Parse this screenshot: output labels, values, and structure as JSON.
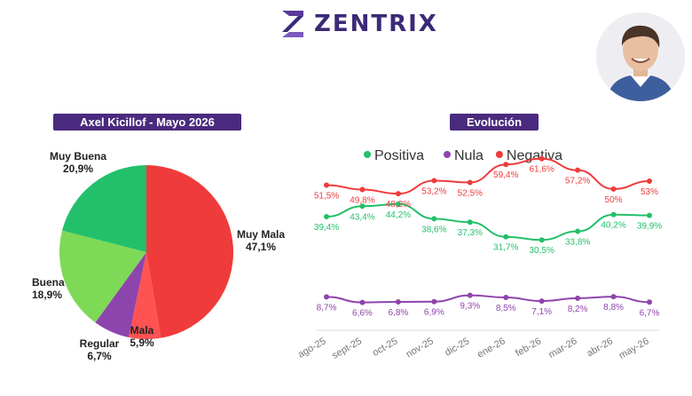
{
  "brand": {
    "name": "ZENTRIX"
  },
  "colors": {
    "header_purple": "#4a2a7e",
    "positiva": "#22c06a",
    "nula": "#8e44ad",
    "negativa": "#ef3b3b"
  },
  "chart_data": [
    {
      "type": "pie",
      "title": "Axel Kicillof - Mayo 2026",
      "slices": [
        {
          "label": "Muy Mala",
          "value": 47.1,
          "display": "47,1%",
          "color": "#ef3b3b"
        },
        {
          "label": "Mala",
          "value": 5.9,
          "display": "5,9%",
          "color": "#ff5252"
        },
        {
          "label": "Regular",
          "value": 6.7,
          "display": "6,7%",
          "color": "#8e44ad"
        },
        {
          "label": "Buena",
          "value": 18.9,
          "display": "18,9%",
          "color": "#7ed957"
        },
        {
          "label": "Muy Buena",
          "value": 20.9,
          "display": "20,9%",
          "color": "#22c06a"
        }
      ]
    },
    {
      "type": "line",
      "title": "Evolución",
      "legend_position": "top",
      "categories": [
        "ago-25",
        "sept-25",
        "oct-25",
        "nov-25",
        "dic-25",
        "ene-26",
        "feb-26",
        "mar-26",
        "abr-26",
        "may-26"
      ],
      "ylim": [
        0,
        70
      ],
      "series": [
        {
          "name": "Positiva",
          "color": "#22c06a",
          "values": [
            39.4,
            43.4,
            44.2,
            38.6,
            37.3,
            31.7,
            30.5,
            33.8,
            40.2,
            39.9
          ],
          "labels": [
            "39,4%",
            "43,4%",
            "44,2%",
            "38,6%",
            "37,3%",
            "31,7%",
            "30,5%",
            "33,8%",
            "40,2%",
            "39,9%"
          ]
        },
        {
          "name": "Nula",
          "color": "#8e44ad",
          "values": [
            8.7,
            6.6,
            6.8,
            6.9,
            9.3,
            8.5,
            7.1,
            8.2,
            8.8,
            6.7
          ],
          "labels": [
            "8,7%",
            "6,6%",
            "6,8%",
            "6,9%",
            "9,3%",
            "8,5%",
            "7,1%",
            "8,2%",
            "8,8%",
            "6,7%"
          ]
        },
        {
          "name": "Negativa",
          "color": "#ef3b3b",
          "values": [
            51.5,
            49.8,
            48.2,
            53.2,
            52.5,
            59.4,
            61.6,
            57.2,
            50,
            53
          ],
          "labels": [
            "51,5%",
            "49,8%",
            "48,2%",
            "53,2%",
            "52,5%",
            "59,4%",
            "61,6%",
            "57,2%",
            "50%",
            "53%"
          ]
        }
      ]
    }
  ]
}
